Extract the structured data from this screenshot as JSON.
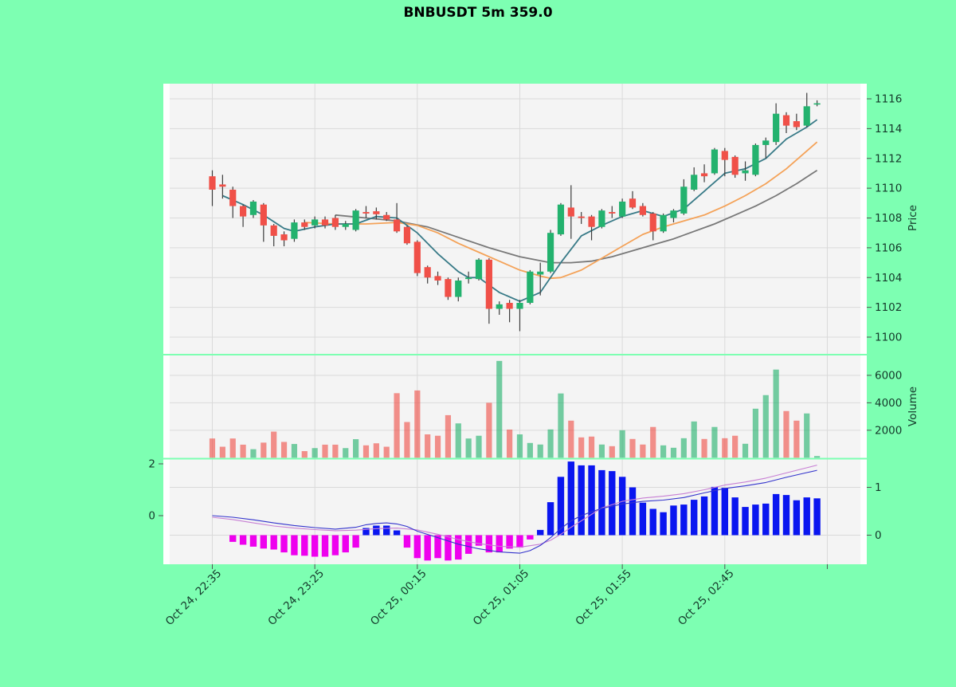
{
  "title": "BNBUSDT 5m 359.0",
  "colors": {
    "figure_bg": "#7dffb2",
    "panel_bg": "#f4f4f4",
    "panel_edge": "#ffffff",
    "grid": "#dadada",
    "candle_up": "#23b26e",
    "candle_down": "#f05048",
    "wick": "#3c3c3c",
    "ma_fast": "#387a87",
    "ma_mid": "#f4a258",
    "ma_slow": "#787878",
    "macd_line": "#3333cc",
    "signal_line": "#c77fd4",
    "hist_positive": "#0a16f0",
    "hist_negative": "#ee00ee",
    "tick_text": "#14382a",
    "axis_tick": "#555555"
  },
  "chart_data": {
    "type": "candlestick",
    "title": "BNBUSDT 5m 359.0",
    "symbol": "BNBUSDT",
    "interval": "5m",
    "start_time": "Oct 24, 22:35",
    "interval_minutes": 5,
    "x_ticklabels": [
      "Oct 24, 22:35",
      "Oct 24, 23:25",
      "Oct 25, 00:15",
      "Oct 25, 01:05",
      "Oct 25, 01:55",
      "Oct 25, 02:45",
      ""
    ],
    "x_tick_indices": [
      0,
      10,
      20,
      30,
      40,
      50,
      60
    ],
    "price_axis": {
      "label": "Price",
      "ticks": [
        1100,
        1102,
        1104,
        1106,
        1108,
        1110,
        1112,
        1114,
        1116
      ],
      "range": [
        1098.9,
        1117.1
      ]
    },
    "volume_axis": {
      "label": "Volume",
      "ticks": [
        2000,
        4000,
        6000
      ],
      "range": [
        0,
        7450
      ]
    },
    "indicator_axis_left": {
      "ticks": [
        0,
        2
      ],
      "range": [
        -1.9,
        2.3
      ]
    },
    "indicator_axis_right": {
      "ticks": [
        0,
        1
      ],
      "range": [
        -0.6,
        1.6
      ]
    },
    "candle_fields": [
      "open",
      "high",
      "low",
      "close",
      "volume",
      "histogram"
    ],
    "candles": [
      [
        1110.8,
        1111.2,
        1108.8,
        1109.9,
        1400,
        0
      ],
      [
        1110.25,
        1110.9,
        1109.3,
        1110.1,
        800,
        0
      ],
      [
        1109.9,
        1110.1,
        1108.0,
        1108.8,
        1400,
        -0.14
      ],
      [
        1108.8,
        1108.9,
        1107.4,
        1108.1,
        950,
        -0.2
      ],
      [
        1108.2,
        1109.2,
        1108.0,
        1109.1,
        620,
        -0.24
      ],
      [
        1108.9,
        1109.0,
        1106.4,
        1107.5,
        1100,
        -0.28
      ],
      [
        1107.5,
        1107.6,
        1106.1,
        1106.8,
        1900,
        -0.3
      ],
      [
        1106.9,
        1107.1,
        1106.1,
        1106.5,
        1150,
        -0.36
      ],
      [
        1106.6,
        1107.9,
        1106.4,
        1107.7,
        1000,
        -0.42
      ],
      [
        1107.7,
        1107.9,
        1107.2,
        1107.4,
        480,
        -0.43
      ],
      [
        1107.5,
        1108.1,
        1107.3,
        1107.9,
        700,
        -0.45
      ],
      [
        1107.9,
        1108.1,
        1107.3,
        1107.5,
        950,
        -0.45
      ],
      [
        1108.0,
        1108.2,
        1107.2,
        1107.4,
        950,
        -0.42
      ],
      [
        1107.4,
        1107.8,
        1107.2,
        1107.6,
        700,
        -0.36
      ],
      [
        1107.2,
        1108.6,
        1107.1,
        1108.5,
        1350,
        -0.26
      ],
      [
        1108.4,
        1108.8,
        1108.0,
        1108.3,
        900,
        0.15
      ],
      [
        1108.45,
        1108.7,
        1107.9,
        1108.25,
        1050,
        0.2
      ],
      [
        1108.2,
        1108.4,
        1107.8,
        1107.9,
        800,
        0.2
      ],
      [
        1107.9,
        1109.0,
        1107.0,
        1107.1,
        4700,
        0.1
      ],
      [
        1107.4,
        1107.5,
        1106.2,
        1106.3,
        2600,
        -0.26
      ],
      [
        1106.4,
        1106.5,
        1104.1,
        1104.3,
        4900,
        -0.48
      ],
      [
        1104.7,
        1104.8,
        1103.6,
        1104.0,
        1700,
        -0.53
      ],
      [
        1104.1,
        1104.4,
        1103.5,
        1103.8,
        1600,
        -0.48
      ],
      [
        1103.9,
        1104.0,
        1102.5,
        1102.7,
        3100,
        -0.53
      ],
      [
        1102.7,
        1104.0,
        1102.4,
        1103.8,
        2500,
        -0.51
      ],
      [
        1103.9,
        1104.4,
        1103.6,
        1104.0,
        1400,
        -0.39
      ],
      [
        1103.9,
        1105.3,
        1103.8,
        1105.2,
        1600,
        -0.22
      ],
      [
        1105.2,
        1105.3,
        1100.9,
        1101.9,
        4000,
        -0.36
      ],
      [
        1101.9,
        1102.4,
        1101.5,
        1102.2,
        7050,
        -0.36
      ],
      [
        1102.3,
        1102.5,
        1101.0,
        1101.9,
        2050,
        -0.28
      ],
      [
        1101.9,
        1102.5,
        1100.4,
        1102.3,
        1700,
        -0.26
      ],
      [
        1102.3,
        1104.5,
        1102.2,
        1104.4,
        1075,
        -0.09
      ],
      [
        1104.2,
        1105.0,
        1102.8,
        1104.4,
        960,
        0.11
      ],
      [
        1104.4,
        1107.2,
        1104.3,
        1107.0,
        2060,
        0.69
      ],
      [
        1106.9,
        1109.0,
        1106.8,
        1108.9,
        4680,
        1.22
      ],
      [
        1108.7,
        1110.2,
        1106.6,
        1108.1,
        2700,
        1.54
      ],
      [
        1108.1,
        1108.4,
        1107.6,
        1108.0,
        1480,
        1.46
      ],
      [
        1108.1,
        1108.2,
        1106.5,
        1107.4,
        1540,
        1.46
      ],
      [
        1107.4,
        1108.6,
        1107.3,
        1108.5,
        960,
        1.36
      ],
      [
        1108.4,
        1108.8,
        1108.0,
        1108.3,
        840,
        1.34
      ],
      [
        1108.1,
        1109.3,
        1108.0,
        1109.1,
        2000,
        1.22
      ],
      [
        1109.3,
        1109.8,
        1108.6,
        1108.7,
        1365,
        1.0
      ],
      [
        1108.8,
        1109.0,
        1108.1,
        1108.2,
        960,
        0.68
      ],
      [
        1108.3,
        1108.4,
        1106.5,
        1107.1,
        2240,
        0.55
      ],
      [
        1107.1,
        1108.3,
        1107.0,
        1108.2,
        900,
        0.48
      ],
      [
        1108.0,
        1108.6,
        1107.7,
        1108.5,
        725,
        0.62
      ],
      [
        1108.3,
        1110.6,
        1108.2,
        1110.1,
        1420,
        0.64
      ],
      [
        1109.9,
        1111.4,
        1109.8,
        1110.9,
        2640,
        0.74
      ],
      [
        1111.0,
        1111.6,
        1110.4,
        1110.8,
        1365,
        0.81
      ],
      [
        1111.0,
        1112.7,
        1110.9,
        1112.6,
        2240,
        1.01
      ],
      [
        1112.5,
        1112.7,
        1110.8,
        1111.9,
        1420,
        0.99
      ],
      [
        1112.1,
        1112.2,
        1110.7,
        1110.9,
        1600,
        0.79
      ],
      [
        1111.0,
        1111.8,
        1110.5,
        1111.2,
        1016,
        0.59
      ],
      [
        1110.9,
        1113.0,
        1110.8,
        1112.9,
        3570,
        0.64
      ],
      [
        1112.9,
        1113.4,
        1112.0,
        1113.2,
        4560,
        0.66
      ],
      [
        1113.1,
        1115.7,
        1112.9,
        1115.0,
        6420,
        0.86
      ],
      [
        1114.9,
        1115.1,
        1113.7,
        1114.2,
        3400,
        0.84
      ],
      [
        1114.5,
        1115.0,
        1113.9,
        1114.1,
        2700,
        0.73
      ],
      [
        1114.2,
        1116.4,
        1114.1,
        1115.5,
        3225,
        0.79
      ],
      [
        1115.7,
        1115.9,
        1115.5,
        1115.7,
        120,
        0.77
      ]
    ],
    "ma_fast": [
      [
        1,
        1109.5
      ],
      [
        3,
        1108.9
      ],
      [
        5,
        1108.2
      ],
      [
        7,
        1107.3
      ],
      [
        8,
        1107.1
      ],
      [
        10,
        1107.4
      ],
      [
        12,
        1107.6
      ],
      [
        14,
        1107.6
      ],
      [
        16,
        1108.1
      ],
      [
        18,
        1108.0
      ],
      [
        20,
        1107.0
      ],
      [
        22,
        1105.6
      ],
      [
        24,
        1104.4
      ],
      [
        25,
        1104.0
      ],
      [
        26,
        1104.0
      ],
      [
        28,
        1103.0
      ],
      [
        30,
        1102.4
      ],
      [
        32,
        1103.0
      ],
      [
        34,
        1105.0
      ],
      [
        36,
        1106.8
      ],
      [
        38,
        1107.5
      ],
      [
        40,
        1108.1
      ],
      [
        42,
        1108.5
      ],
      [
        44,
        1108.1
      ],
      [
        46,
        1108.6
      ],
      [
        48,
        1109.8
      ],
      [
        50,
        1111.0
      ],
      [
        52,
        1111.3
      ],
      [
        54,
        1112.0
      ],
      [
        56,
        1113.3
      ],
      [
        58,
        1114.1
      ],
      [
        59,
        1114.6
      ]
    ],
    "ma_mid": [
      [
        9,
        1107.7
      ],
      [
        12,
        1107.6
      ],
      [
        15,
        1107.6
      ],
      [
        18,
        1107.7
      ],
      [
        20,
        1107.5
      ],
      [
        22,
        1107.0
      ],
      [
        24,
        1106.3
      ],
      [
        26,
        1105.7
      ],
      [
        28,
        1105.1
      ],
      [
        30,
        1104.5
      ],
      [
        32,
        1104.1
      ],
      [
        33,
        1103.95
      ],
      [
        34,
        1104.0
      ],
      [
        36,
        1104.5
      ],
      [
        38,
        1105.3
      ],
      [
        40,
        1106.1
      ],
      [
        42,
        1106.9
      ],
      [
        44,
        1107.4
      ],
      [
        46,
        1107.8
      ],
      [
        48,
        1108.2
      ],
      [
        50,
        1108.8
      ],
      [
        52,
        1109.5
      ],
      [
        54,
        1110.3
      ],
      [
        56,
        1111.3
      ],
      [
        58,
        1112.5
      ],
      [
        59,
        1113.1
      ]
    ],
    "ma_slow": [
      [
        12,
        1108.2
      ],
      [
        15,
        1108.0
      ],
      [
        18,
        1107.8
      ],
      [
        21,
        1107.4
      ],
      [
        24,
        1106.7
      ],
      [
        27,
        1106.0
      ],
      [
        30,
        1105.4
      ],
      [
        33,
        1105.0
      ],
      [
        35,
        1105.0
      ],
      [
        37,
        1105.1
      ],
      [
        39,
        1105.4
      ],
      [
        41,
        1105.8
      ],
      [
        43,
        1106.2
      ],
      [
        45,
        1106.6
      ],
      [
        47,
        1107.1
      ],
      [
        49,
        1107.6
      ],
      [
        51,
        1108.2
      ],
      [
        53,
        1108.8
      ],
      [
        55,
        1109.5
      ],
      [
        57,
        1110.3
      ],
      [
        59,
        1111.2
      ]
    ],
    "macd_line": [
      [
        0,
        0.0
      ],
      [
        2,
        -0.06
      ],
      [
        4,
        -0.16
      ],
      [
        6,
        -0.28
      ],
      [
        8,
        -0.38
      ],
      [
        10,
        -0.46
      ],
      [
        12,
        -0.52
      ],
      [
        14,
        -0.45
      ],
      [
        15,
        -0.35
      ],
      [
        16,
        -0.3
      ],
      [
        17,
        -0.28
      ],
      [
        18,
        -0.32
      ],
      [
        19,
        -0.42
      ],
      [
        20,
        -0.6
      ],
      [
        22,
        -0.85
      ],
      [
        24,
        -1.1
      ],
      [
        26,
        -1.28
      ],
      [
        28,
        -1.4
      ],
      [
        30,
        -1.45
      ],
      [
        31,
        -1.35
      ],
      [
        32,
        -1.15
      ],
      [
        33,
        -0.85
      ],
      [
        34,
        -0.5
      ],
      [
        35,
        -0.2
      ],
      [
        36,
        0.0
      ],
      [
        37,
        0.15
      ],
      [
        38,
        0.28
      ],
      [
        40,
        0.45
      ],
      [
        42,
        0.55
      ],
      [
        44,
        0.6
      ],
      [
        46,
        0.7
      ],
      [
        48,
        0.88
      ],
      [
        50,
        1.05
      ],
      [
        52,
        1.15
      ],
      [
        54,
        1.28
      ],
      [
        56,
        1.48
      ],
      [
        58,
        1.66
      ],
      [
        59,
        1.75
      ]
    ],
    "signal_line": [
      [
        0,
        -0.06
      ],
      [
        2,
        -0.15
      ],
      [
        4,
        -0.28
      ],
      [
        6,
        -0.4
      ],
      [
        8,
        -0.48
      ],
      [
        10,
        -0.54
      ],
      [
        12,
        -0.58
      ],
      [
        14,
        -0.56
      ],
      [
        16,
        -0.5
      ],
      [
        18,
        -0.48
      ],
      [
        20,
        -0.55
      ],
      [
        22,
        -0.72
      ],
      [
        24,
        -0.92
      ],
      [
        26,
        -1.08
      ],
      [
        28,
        -1.18
      ],
      [
        30,
        -1.22
      ],
      [
        32,
        -1.1
      ],
      [
        33,
        -0.95
      ],
      [
        34,
        -0.72
      ],
      [
        35,
        -0.45
      ],
      [
        36,
        -0.2
      ],
      [
        37,
        0.05
      ],
      [
        38,
        0.3
      ],
      [
        40,
        0.55
      ],
      [
        42,
        0.68
      ],
      [
        44,
        0.75
      ],
      [
        46,
        0.85
      ],
      [
        48,
        1.0
      ],
      [
        50,
        1.18
      ],
      [
        52,
        1.3
      ],
      [
        54,
        1.45
      ],
      [
        56,
        1.65
      ],
      [
        58,
        1.85
      ],
      [
        59,
        1.95
      ]
    ],
    "legend_position": "none",
    "grid": true
  }
}
